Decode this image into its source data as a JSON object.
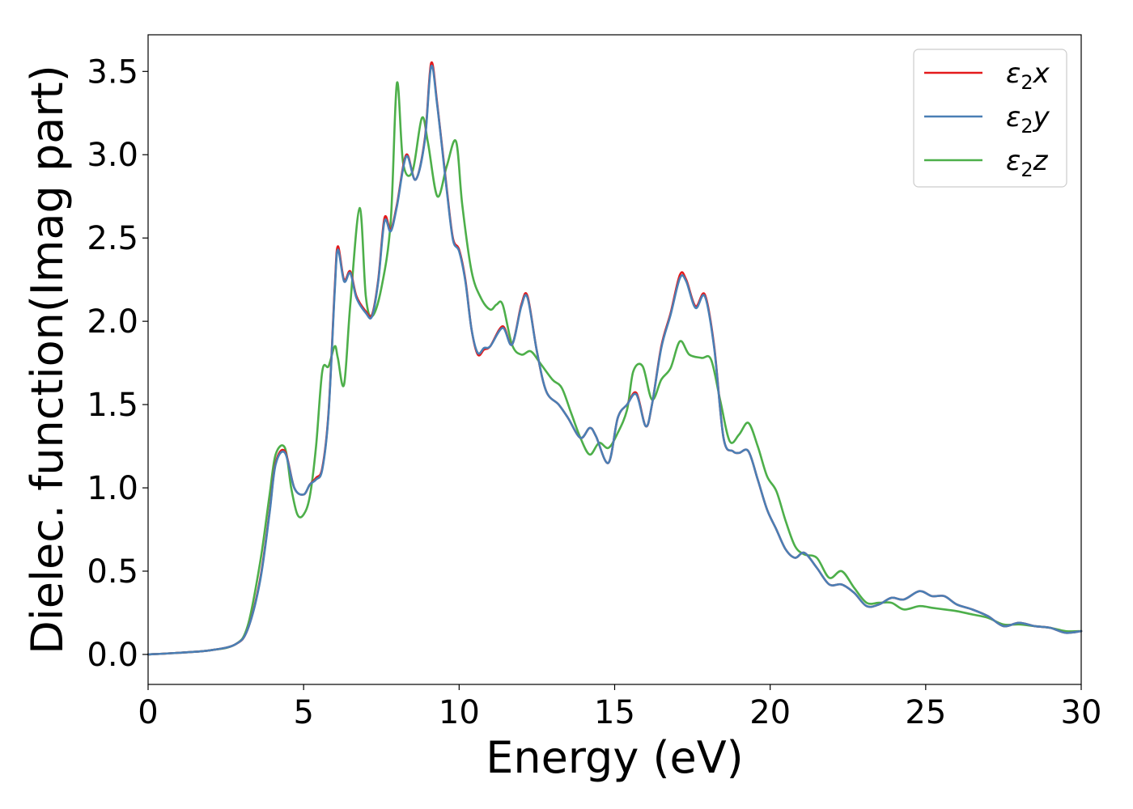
{
  "chart_data": {
    "type": "line",
    "title": "",
    "xlabel": "Energy (eV)",
    "ylabel": "Dielec. function(Imag part)",
    "xlim": [
      0,
      30
    ],
    "ylim": [
      -0.18,
      3.72
    ],
    "xticks": [
      0,
      5,
      10,
      15,
      20,
      25,
      30
    ],
    "yticks": [
      0.0,
      0.5,
      1.0,
      1.5,
      2.0,
      2.5,
      3.0,
      3.5
    ],
    "xtick_labels": [
      "0",
      "5",
      "10",
      "15",
      "20",
      "25",
      "30"
    ],
    "ytick_labels": [
      "0.0",
      "0.5",
      "1.0",
      "1.5",
      "2.0",
      "2.5",
      "3.0",
      "3.5"
    ],
    "grid": false,
    "legend_position": "top-right",
    "series": [
      {
        "name": "ε₂x",
        "label_base": "ε",
        "label_sub": "2",
        "label_var": "x",
        "color": "#e41a1c",
        "x": [
          0,
          1,
          2,
          2.8,
          3.2,
          3.6,
          3.9,
          4.1,
          4.4,
          4.7,
          5.0,
          5.2,
          5.4,
          5.6,
          5.8,
          6.0,
          6.1,
          6.3,
          6.5,
          6.7,
          7.0,
          7.2,
          7.4,
          7.6,
          7.8,
          8.0,
          8.3,
          8.6,
          8.9,
          9.1,
          9.3,
          9.6,
          9.8,
          10.0,
          10.2,
          10.4,
          10.6,
          10.8,
          11.0,
          11.4,
          11.7,
          12.0,
          12.2,
          12.5,
          12.8,
          13.2,
          13.5,
          13.9,
          14.2,
          14.4,
          14.8,
          15.1,
          15.4,
          15.7,
          16.0,
          16.2,
          16.5,
          16.8,
          17.1,
          17.3,
          17.6,
          17.9,
          18.2,
          18.5,
          18.8,
          19.0,
          19.3,
          19.6,
          19.9,
          20.2,
          20.5,
          20.8,
          21.1,
          21.5,
          21.9,
          22.3,
          22.7,
          23.1,
          23.5,
          23.9,
          24.3,
          24.8,
          25.2,
          25.6,
          26.0,
          26.5,
          27.0,
          27.5,
          28.0,
          28.5,
          29.0,
          29.5,
          30.0
        ],
        "y": [
          0.0,
          0.01,
          0.025,
          0.06,
          0.15,
          0.45,
          0.85,
          1.15,
          1.22,
          1.0,
          0.96,
          1.02,
          1.06,
          1.12,
          1.45,
          2.2,
          2.45,
          2.25,
          2.3,
          2.15,
          2.06,
          2.04,
          2.25,
          2.62,
          2.55,
          2.7,
          3.0,
          2.85,
          3.1,
          3.55,
          3.3,
          2.8,
          2.5,
          2.43,
          2.25,
          1.95,
          1.8,
          1.83,
          1.85,
          1.97,
          1.86,
          2.1,
          2.15,
          1.82,
          1.58,
          1.5,
          1.42,
          1.3,
          1.36,
          1.31,
          1.15,
          1.42,
          1.5,
          1.57,
          1.37,
          1.5,
          1.85,
          2.05,
          2.28,
          2.25,
          2.09,
          2.16,
          1.85,
          1.3,
          1.22,
          1.21,
          1.22,
          1.05,
          0.87,
          0.75,
          0.63,
          0.58,
          0.61,
          0.52,
          0.42,
          0.42,
          0.37,
          0.29,
          0.3,
          0.34,
          0.33,
          0.38,
          0.35,
          0.35,
          0.3,
          0.27,
          0.23,
          0.17,
          0.19,
          0.17,
          0.16,
          0.13,
          0.14
        ]
      },
      {
        "name": "ε₂y",
        "label_base": "ε",
        "label_sub": "2",
        "label_var": "y",
        "color": "#4a7fb5",
        "x": [
          0,
          1,
          2,
          2.8,
          3.2,
          3.6,
          3.9,
          4.1,
          4.4,
          4.7,
          5.0,
          5.2,
          5.4,
          5.6,
          5.8,
          6.0,
          6.1,
          6.3,
          6.5,
          6.7,
          7.0,
          7.2,
          7.4,
          7.6,
          7.8,
          8.0,
          8.3,
          8.6,
          8.9,
          9.1,
          9.3,
          9.6,
          9.8,
          10.0,
          10.2,
          10.4,
          10.6,
          10.8,
          11.0,
          11.4,
          11.7,
          12.0,
          12.2,
          12.5,
          12.8,
          13.2,
          13.5,
          13.9,
          14.2,
          14.4,
          14.8,
          15.1,
          15.4,
          15.7,
          16.0,
          16.2,
          16.5,
          16.8,
          17.1,
          17.3,
          17.6,
          17.9,
          18.2,
          18.5,
          18.8,
          19.0,
          19.3,
          19.6,
          19.9,
          20.2,
          20.5,
          20.8,
          21.1,
          21.5,
          21.9,
          22.3,
          22.7,
          23.1,
          23.5,
          23.9,
          24.3,
          24.8,
          25.2,
          25.6,
          26.0,
          26.5,
          27.0,
          27.5,
          28.0,
          28.5,
          29.0,
          29.5,
          30.0
        ],
        "y": [
          0.0,
          0.01,
          0.025,
          0.06,
          0.15,
          0.44,
          0.84,
          1.14,
          1.21,
          1.0,
          0.96,
          1.02,
          1.05,
          1.11,
          1.44,
          2.18,
          2.43,
          2.24,
          2.29,
          2.14,
          2.05,
          2.03,
          2.24,
          2.6,
          2.54,
          2.69,
          2.99,
          2.85,
          3.09,
          3.53,
          3.29,
          2.79,
          2.49,
          2.42,
          2.24,
          1.95,
          1.81,
          1.84,
          1.85,
          1.96,
          1.86,
          2.09,
          2.14,
          1.82,
          1.58,
          1.5,
          1.42,
          1.3,
          1.36,
          1.31,
          1.15,
          1.42,
          1.5,
          1.56,
          1.37,
          1.5,
          1.84,
          2.04,
          2.26,
          2.24,
          2.08,
          2.15,
          1.84,
          1.3,
          1.22,
          1.21,
          1.22,
          1.05,
          0.87,
          0.75,
          0.63,
          0.58,
          0.61,
          0.52,
          0.42,
          0.42,
          0.37,
          0.29,
          0.3,
          0.34,
          0.33,
          0.38,
          0.35,
          0.35,
          0.3,
          0.27,
          0.23,
          0.17,
          0.19,
          0.17,
          0.16,
          0.13,
          0.14
        ]
      },
      {
        "name": "ε₂z",
        "label_base": "ε",
        "label_sub": "2",
        "label_var": "z",
        "color": "#4daf4a",
        "x": [
          0,
          1,
          2,
          2.8,
          3.2,
          3.6,
          3.9,
          4.1,
          4.4,
          4.6,
          4.8,
          5.0,
          5.2,
          5.4,
          5.6,
          5.8,
          6.0,
          6.1,
          6.3,
          6.5,
          6.8,
          7.0,
          7.2,
          7.5,
          7.8,
          8.0,
          8.2,
          8.5,
          8.8,
          9.0,
          9.3,
          9.6,
          9.9,
          10.1,
          10.4,
          10.7,
          11.0,
          11.2,
          11.4,
          11.7,
          12.0,
          12.3,
          12.6,
          13.0,
          13.3,
          13.6,
          13.9,
          14.2,
          14.5,
          14.8,
          15.1,
          15.4,
          15.6,
          15.9,
          16.2,
          16.5,
          16.8,
          17.1,
          17.4,
          17.8,
          18.1,
          18.4,
          18.7,
          19.0,
          19.3,
          19.6,
          19.9,
          20.2,
          20.5,
          20.8,
          21.1,
          21.5,
          21.9,
          22.3,
          22.7,
          23.1,
          23.5,
          23.9,
          24.3,
          24.8,
          25.2,
          25.6,
          26.0,
          26.5,
          27.0,
          27.5,
          28.0,
          28.5,
          29.0,
          29.5,
          30.0
        ],
        "y": [
          0.0,
          0.01,
          0.025,
          0.06,
          0.17,
          0.55,
          0.95,
          1.2,
          1.24,
          1.0,
          0.84,
          0.84,
          0.95,
          1.25,
          1.7,
          1.73,
          1.85,
          1.78,
          1.62,
          2.1,
          2.68,
          2.15,
          2.03,
          2.2,
          2.6,
          3.43,
          2.95,
          2.9,
          3.22,
          3.07,
          2.75,
          2.93,
          3.08,
          2.7,
          2.3,
          2.14,
          2.07,
          2.1,
          2.1,
          1.86,
          1.8,
          1.82,
          1.75,
          1.65,
          1.6,
          1.45,
          1.3,
          1.2,
          1.27,
          1.24,
          1.33,
          1.47,
          1.7,
          1.73,
          1.53,
          1.65,
          1.72,
          1.88,
          1.8,
          1.78,
          1.77,
          1.52,
          1.28,
          1.32,
          1.39,
          1.25,
          1.07,
          0.98,
          0.8,
          0.65,
          0.6,
          0.58,
          0.46,
          0.5,
          0.4,
          0.31,
          0.31,
          0.31,
          0.27,
          0.29,
          0.28,
          0.27,
          0.26,
          0.24,
          0.22,
          0.18,
          0.18,
          0.17,
          0.16,
          0.14,
          0.14
        ]
      }
    ]
  }
}
